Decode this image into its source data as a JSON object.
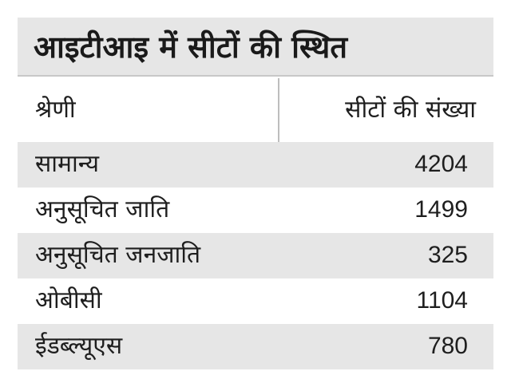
{
  "chart_data": {
    "type": "table",
    "title": "आइटीआइ में सीटों की स्थित",
    "columns": [
      "श्रेणी",
      "सीटों की संख्या"
    ],
    "rows": [
      {
        "category": "सामान्य",
        "value": "4204"
      },
      {
        "category": "अनुसूचित जाति",
        "value": "1499"
      },
      {
        "category": "अनुसूचित जनजाति",
        "value": "325"
      },
      {
        "category": "ओबीसी",
        "value": "1104"
      },
      {
        "category": "ईडब्ल्यूएस",
        "value": "780"
      }
    ],
    "categories": [
      "सामान्य",
      "अनुसूचित जाति",
      "अनुसूचित जनजाति",
      "ओबीसी",
      "ईडब्ल्यूएस"
    ],
    "values": [
      4204,
      1499,
      325,
      1104,
      780
    ]
  },
  "colors": {
    "shaded_row": "#e6e6e6",
    "text": "#1e1e1e",
    "divider": "#bdbdbd"
  }
}
